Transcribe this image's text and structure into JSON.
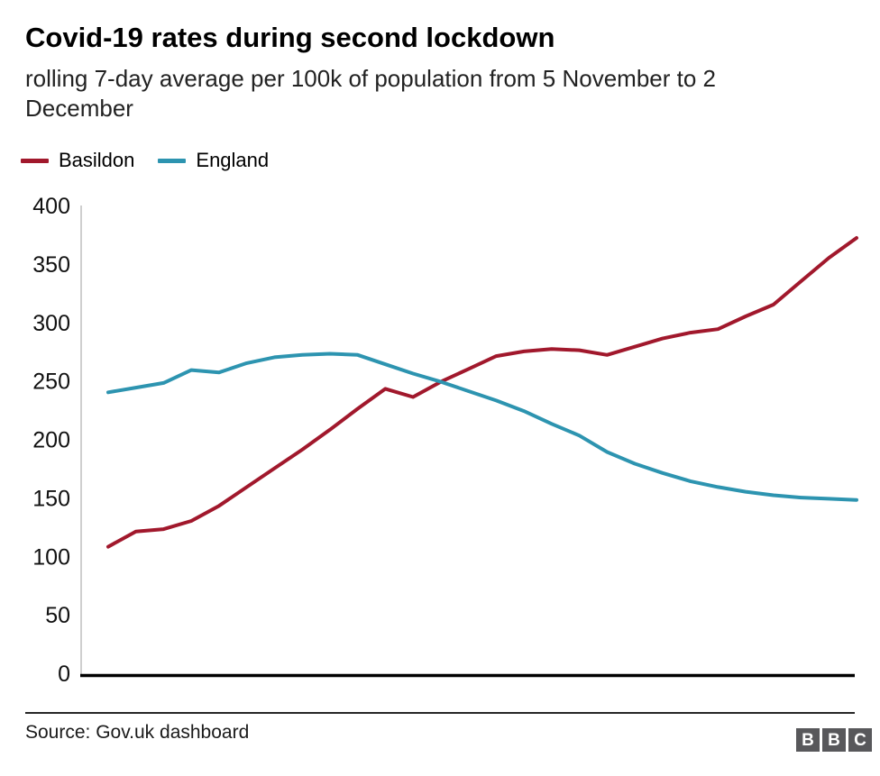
{
  "header": {
    "title": "Covid-19 rates during second lockdown",
    "subtitle_line1": "rolling 7-day average per 100k of population from 5 November to 2",
    "subtitle_line2": "December"
  },
  "colors": {
    "basildon_red": "#a1182c",
    "england_teal": "#2d94b0",
    "axis_gray": "#bfbfbf",
    "axis_black": "#000000"
  },
  "chart_data": {
    "type": "line",
    "title": "Covid-19 rates during second lockdown",
    "subtitle": "rolling 7-day average per 100k of population from 5 November to 2 December",
    "x_period_label": "5 November to 2 December",
    "x_points": 28,
    "x_axis_labels": [],
    "ylabel": "",
    "ylim": [
      0,
      400
    ],
    "yticks": [
      400,
      350,
      300,
      250,
      200,
      150,
      100,
      50,
      0
    ],
    "grid": false,
    "legend_position": "top-left",
    "series": [
      {
        "name": "Basildon",
        "color": "#a1182c",
        "values": [
          109,
          122,
          124,
          131,
          144,
          160,
          176,
          192,
          209,
          227,
          244,
          237,
          250,
          261,
          272,
          276,
          278,
          277,
          273,
          280,
          287,
          292,
          295,
          306,
          316,
          336,
          356,
          373
        ]
      },
      {
        "name": "England",
        "color": "#2d94b0",
        "values": [
          241,
          245,
          249,
          260,
          258,
          266,
          271,
          273,
          274,
          273,
          265,
          257,
          250,
          242,
          234,
          225,
          214,
          204,
          190,
          180,
          172,
          165,
          160,
          156,
          153,
          151,
          150,
          149
        ]
      }
    ]
  },
  "footer": {
    "source": "Source: Gov.uk dashboard",
    "bbc_logo_letters": [
      "B",
      "B",
      "C"
    ]
  }
}
